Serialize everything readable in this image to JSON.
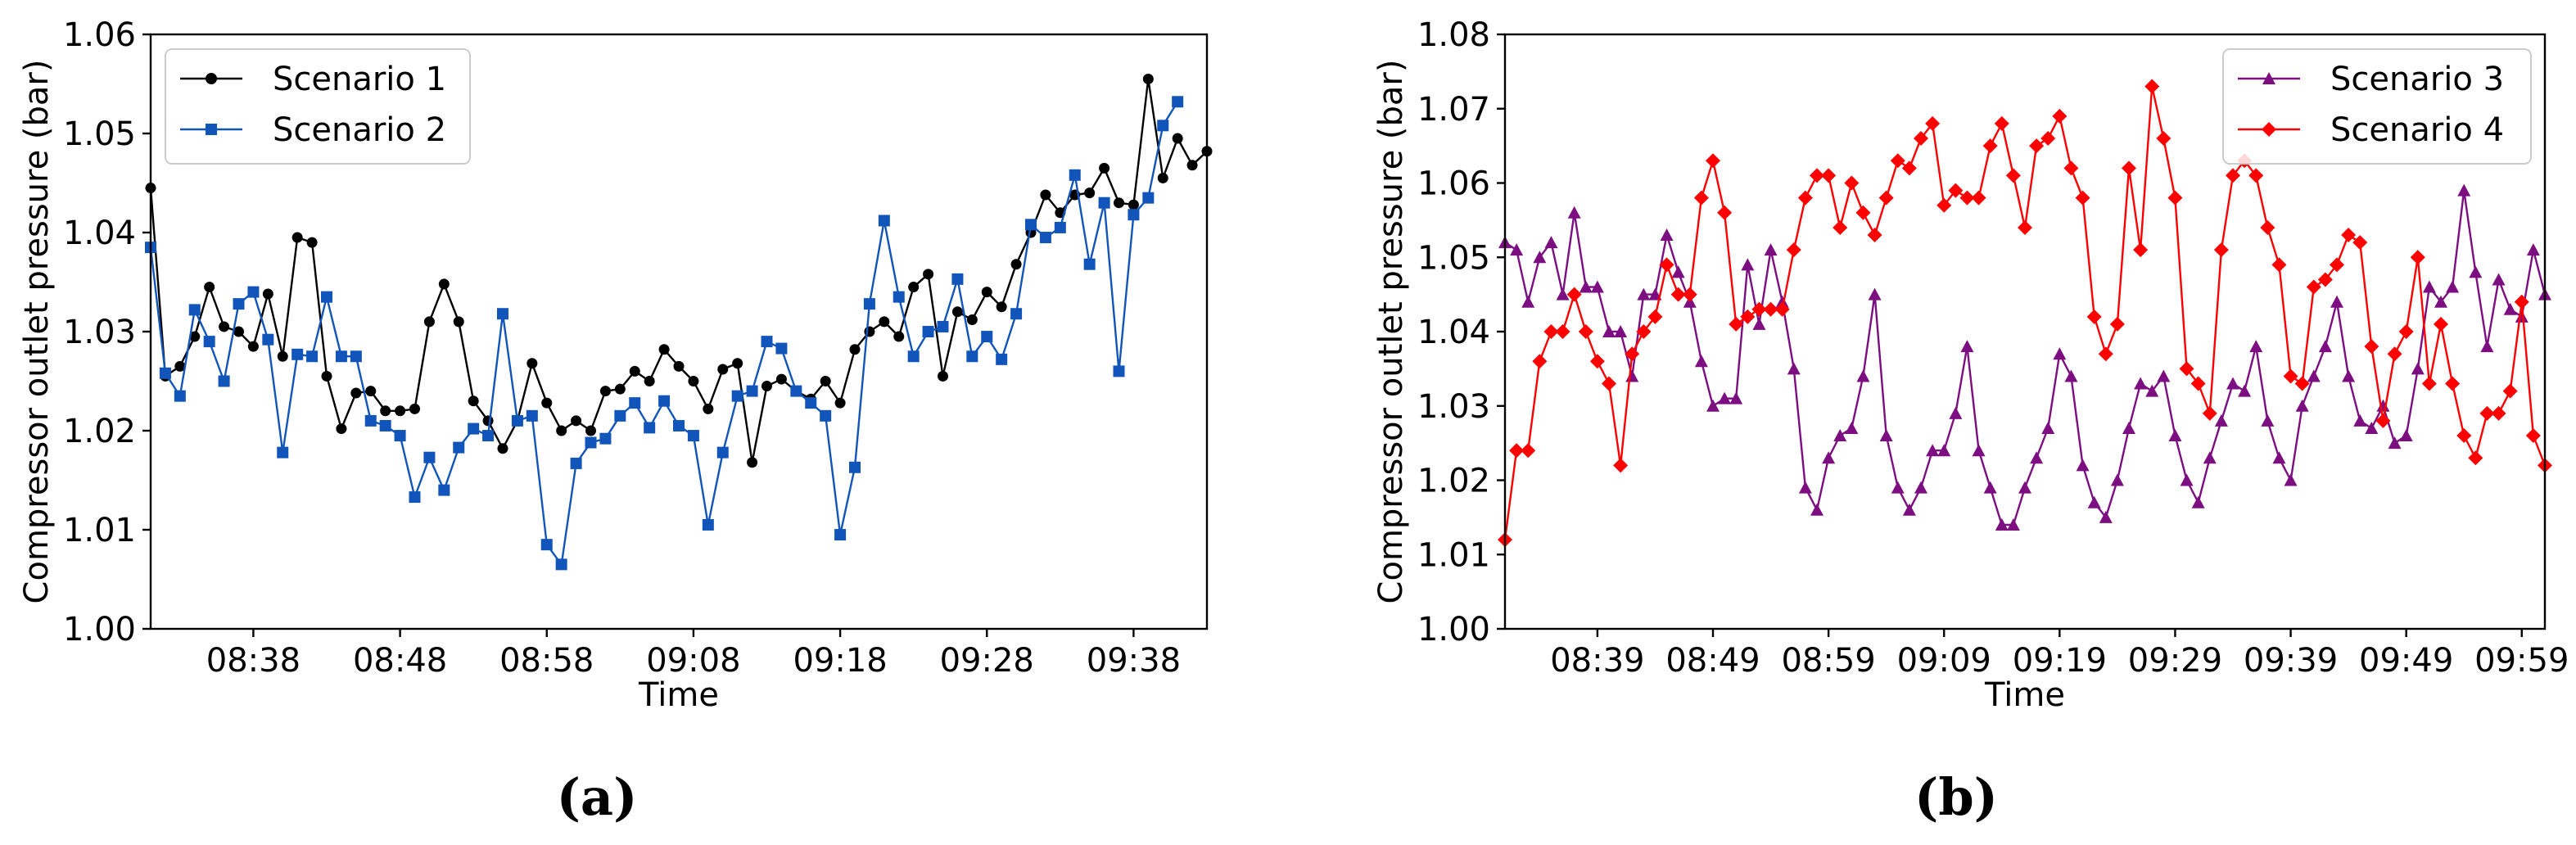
{
  "chart_data": [
    {
      "panel_label": "(a)",
      "type": "line",
      "xlabel": "Time",
      "ylabel": "Compressor outlet pressure (bar)",
      "ylim": [
        1.0,
        1.06
      ],
      "yticks": [
        "1.00",
        "1.01",
        "1.02",
        "1.03",
        "1.04",
        "1.05",
        "1.06"
      ],
      "x_range": [
        "08:31",
        "09:43"
      ],
      "xticks": [
        "08:38",
        "08:48",
        "08:58",
        "09:08",
        "09:18",
        "09:28",
        "09:38"
      ],
      "grid": false,
      "legend_position": "upper-left",
      "series": [
        {
          "name": "Scenario 1",
          "color": "#000000",
          "marker": "circle",
          "x": [
            "08:31",
            "08:32",
            "08:33",
            "08:34",
            "08:35",
            "08:36",
            "08:37",
            "08:38",
            "08:39",
            "08:40",
            "08:41",
            "08:42",
            "08:43",
            "08:44",
            "08:45",
            "08:46",
            "08:47",
            "08:48",
            "08:49",
            "08:50",
            "08:51",
            "08:52",
            "08:53",
            "08:54",
            "08:55",
            "08:56",
            "08:57",
            "08:58",
            "08:59",
            "09:00",
            "09:01",
            "09:02",
            "09:03",
            "09:04",
            "09:05",
            "09:06",
            "09:07",
            "09:08",
            "09:09",
            "09:10",
            "09:11",
            "09:12",
            "09:13",
            "09:14",
            "09:15",
            "09:16",
            "09:17",
            "09:18",
            "09:19",
            "09:20",
            "09:21",
            "09:22",
            "09:23",
            "09:24",
            "09:25",
            "09:26",
            "09:27",
            "09:28",
            "09:29",
            "09:30",
            "09:31",
            "09:32",
            "09:33",
            "09:34",
            "09:35",
            "09:36",
            "09:37",
            "09:38",
            "09:39",
            "09:40",
            "09:41",
            "09:42",
            "09:43"
          ],
          "y": [
            1.0445,
            1.0255,
            1.0265,
            1.0295,
            1.0345,
            1.0305,
            1.03,
            1.0285,
            1.0338,
            1.0275,
            1.0395,
            1.039,
            1.0255,
            1.0202,
            1.0238,
            1.024,
            1.022,
            1.022,
            1.0222,
            1.031,
            1.0348,
            1.031,
            1.023,
            1.021,
            1.0182,
            1.021,
            1.0268,
            1.0228,
            1.02,
            1.021,
            1.02,
            1.024,
            1.0242,
            1.026,
            1.025,
            1.0282,
            1.0265,
            1.025,
            1.0222,
            1.0262,
            1.0268,
            1.0168,
            1.0245,
            1.0252,
            1.024,
            1.0232,
            1.025,
            1.0228,
            1.0282,
            1.03,
            1.031,
            1.0295,
            1.0345,
            1.0358,
            1.0255,
            1.032,
            1.0312,
            1.034,
            1.0325,
            1.0368,
            1.04,
            1.0438,
            1.042,
            1.0438,
            1.044,
            1.0465,
            1.043,
            1.0428,
            1.0555,
            1.0455,
            1.0495,
            1.0468,
            1.0482
          ]
        },
        {
          "name": "Scenario 2",
          "color": "#1155bb",
          "marker": "square",
          "x": [
            "08:31",
            "08:32",
            "08:33",
            "08:34",
            "08:35",
            "08:36",
            "08:37",
            "08:38",
            "08:39",
            "08:40",
            "08:41",
            "08:42",
            "08:43",
            "08:44",
            "08:45",
            "08:46",
            "08:47",
            "08:48",
            "08:49",
            "08:50",
            "08:51",
            "08:52",
            "08:53",
            "08:54",
            "08:55",
            "08:56",
            "08:57",
            "08:58",
            "08:59",
            "09:00",
            "09:01",
            "09:02",
            "09:03",
            "09:04",
            "09:05",
            "09:06",
            "09:07",
            "09:08",
            "09:09",
            "09:10",
            "09:11",
            "09:12",
            "09:13",
            "09:14",
            "09:15",
            "09:16",
            "09:17",
            "09:18",
            "09:19",
            "09:20",
            "09:21",
            "09:22",
            "09:23",
            "09:24",
            "09:25",
            "09:26",
            "09:27",
            "09:28",
            "09:29",
            "09:30",
            "09:31",
            "09:32",
            "09:33",
            "09:34",
            "09:35",
            "09:36",
            "09:37",
            "09:38",
            "09:39",
            "09:40",
            "09:41"
          ],
          "y": [
            1.0385,
            1.0258,
            1.0235,
            1.0322,
            1.029,
            1.025,
            1.0328,
            1.034,
            1.0292,
            1.0178,
            1.0277,
            1.0275,
            1.0335,
            1.0275,
            1.0275,
            1.021,
            1.0205,
            1.0195,
            1.0133,
            1.0173,
            1.014,
            1.0183,
            1.0202,
            1.0195,
            1.0318,
            1.021,
            1.0215,
            1.0085,
            1.0065,
            1.0167,
            1.0188,
            1.0192,
            1.0215,
            1.0228,
            1.0203,
            1.023,
            1.0205,
            1.0195,
            1.0105,
            1.0178,
            1.0235,
            1.024,
            1.029,
            1.0283,
            1.024,
            1.0228,
            1.0215,
            1.0095,
            1.0163,
            1.0328,
            1.0412,
            1.0335,
            1.0275,
            1.03,
            1.0305,
            1.0353,
            1.0275,
            1.0295,
            1.0272,
            1.0318,
            1.0408,
            1.0395,
            1.0405,
            1.0458,
            1.0368,
            1.043,
            1.026,
            1.0418,
            1.0435,
            1.0508,
            1.0532
          ]
        }
      ]
    },
    {
      "panel_label": "(b)",
      "type": "line",
      "xlabel": "Time",
      "ylabel": "Compressor outlet pressure (bar)",
      "ylim": [
        1.0,
        1.08
      ],
      "yticks": [
        "1.00",
        "1.01",
        "1.02",
        "1.03",
        "1.04",
        "1.05",
        "1.06",
        "1.07",
        "1.08"
      ],
      "x_range": [
        "08:31",
        "10:01"
      ],
      "xticks": [
        "08:39",
        "08:49",
        "08:59",
        "09:09",
        "09:19",
        "09:29",
        "09:39",
        "09:49",
        "09:59"
      ],
      "grid": false,
      "legend_position": "upper-right",
      "series": [
        {
          "name": "Scenario 3",
          "color": "#7d0e82",
          "marker": "triangle",
          "x": [
            "08:31",
            "08:32",
            "08:33",
            "08:34",
            "08:35",
            "08:36",
            "08:37",
            "08:38",
            "08:39",
            "08:40",
            "08:41",
            "08:42",
            "08:43",
            "08:44",
            "08:45",
            "08:46",
            "08:47",
            "08:48",
            "08:49",
            "08:50",
            "08:51",
            "08:52",
            "08:53",
            "08:54",
            "08:55",
            "08:56",
            "08:57",
            "08:58",
            "08:59",
            "09:00",
            "09:01",
            "09:02",
            "09:03",
            "09:04",
            "09:05",
            "09:06",
            "09:07",
            "09:08",
            "09:09",
            "09:10",
            "09:11",
            "09:12",
            "09:13",
            "09:14",
            "09:15",
            "09:16",
            "09:17",
            "09:18",
            "09:19",
            "09:20",
            "09:21",
            "09:22",
            "09:23",
            "09:24",
            "09:25",
            "09:26",
            "09:27",
            "09:28",
            "09:29",
            "09:30",
            "09:31",
            "09:32",
            "09:33",
            "09:34",
            "09:35",
            "09:36",
            "09:37",
            "09:38",
            "09:39",
            "09:40",
            "09:41",
            "09:42",
            "09:43",
            "09:44",
            "09:45",
            "09:46",
            "09:47",
            "09:48",
            "09:49",
            "09:50",
            "09:51",
            "09:52",
            "09:53",
            "09:54",
            "09:55",
            "09:56",
            "09:57",
            "09:58",
            "09:59",
            "10:00",
            "10:01"
          ],
          "y": [
            1.052,
            1.051,
            1.044,
            1.05,
            1.052,
            1.045,
            1.056,
            1.046,
            1.046,
            1.04,
            1.04,
            1.034,
            1.045,
            1.045,
            1.053,
            1.048,
            1.044,
            1.036,
            1.03,
            1.031,
            1.031,
            1.049,
            1.041,
            1.051,
            1.044,
            1.035,
            1.019,
            1.016,
            1.023,
            1.026,
            1.027,
            1.034,
            1.045,
            1.026,
            1.019,
            1.016,
            1.019,
            1.024,
            1.024,
            1.029,
            1.038,
            1.024,
            1.019,
            1.014,
            1.014,
            1.019,
            1.023,
            1.027,
            1.037,
            1.034,
            1.022,
            1.017,
            1.015,
            1.02,
            1.027,
            1.033,
            1.032,
            1.034,
            1.026,
            1.02,
            1.017,
            1.023,
            1.028,
            1.033,
            1.032,
            1.038,
            1.028,
            1.023,
            1.02,
            1.03,
            1.034,
            1.038,
            1.044,
            1.034,
            1.028,
            1.027,
            1.03,
            1.025,
            1.026,
            1.035,
            1.046,
            1.044,
            1.046,
            1.059,
            1.048,
            1.038,
            1.047,
            1.043,
            1.042,
            1.051,
            1.045
          ]
        },
        {
          "name": "Scenario 4",
          "color": "#ff0000",
          "marker": "diamond",
          "x": [
            "08:31",
            "08:32",
            "08:33",
            "08:34",
            "08:35",
            "08:36",
            "08:37",
            "08:38",
            "08:39",
            "08:40",
            "08:41",
            "08:42",
            "08:43",
            "08:44",
            "08:45",
            "08:46",
            "08:47",
            "08:48",
            "08:49",
            "08:50",
            "08:51",
            "08:52",
            "08:53",
            "08:54",
            "08:55",
            "08:56",
            "08:57",
            "08:58",
            "08:59",
            "09:00",
            "09:01",
            "09:02",
            "09:03",
            "09:04",
            "09:05",
            "09:06",
            "09:07",
            "09:08",
            "09:09",
            "09:10",
            "09:11",
            "09:12",
            "09:13",
            "09:14",
            "09:15",
            "09:16",
            "09:17",
            "09:18",
            "09:19",
            "09:20",
            "09:21",
            "09:22",
            "09:23",
            "09:24",
            "09:25",
            "09:26",
            "09:27",
            "09:28",
            "09:29",
            "09:30",
            "09:31",
            "09:32",
            "09:33",
            "09:34",
            "09:35",
            "09:36",
            "09:37",
            "09:38",
            "09:39",
            "09:40",
            "09:41",
            "09:42",
            "09:43",
            "09:44",
            "09:45",
            "09:46",
            "09:47",
            "09:48",
            "09:49",
            "09:50",
            "09:51",
            "09:52",
            "09:53",
            "09:54",
            "09:55",
            "09:56",
            "09:57",
            "09:58",
            "09:59",
            "10:00",
            "10:01"
          ],
          "y": [
            1.012,
            1.024,
            1.024,
            1.036,
            1.04,
            1.04,
            1.045,
            1.04,
            1.036,
            1.033,
            1.022,
            1.037,
            1.04,
            1.042,
            1.049,
            1.045,
            1.045,
            1.058,
            1.063,
            1.056,
            1.041,
            1.042,
            1.043,
            1.043,
            1.043,
            1.051,
            1.058,
            1.061,
            1.061,
            1.054,
            1.06,
            1.056,
            1.053,
            1.058,
            1.063,
            1.062,
            1.066,
            1.068,
            1.057,
            1.059,
            1.058,
            1.058,
            1.065,
            1.068,
            1.061,
            1.054,
            1.065,
            1.066,
            1.069,
            1.062,
            1.058,
            1.042,
            1.037,
            1.041,
            1.062,
            1.051,
            1.073,
            1.066,
            1.058,
            1.035,
            1.033,
            1.029,
            1.051,
            1.061,
            1.063,
            1.061,
            1.054,
            1.049,
            1.034,
            1.033,
            1.046,
            1.047,
            1.049,
            1.053,
            1.052,
            1.038,
            1.028,
            1.037,
            1.04,
            1.05,
            1.033,
            1.041,
            1.033,
            1.026,
            1.023,
            1.029,
            1.029,
            1.032,
            1.044,
            1.026,
            1.022
          ]
        }
      ]
    }
  ]
}
